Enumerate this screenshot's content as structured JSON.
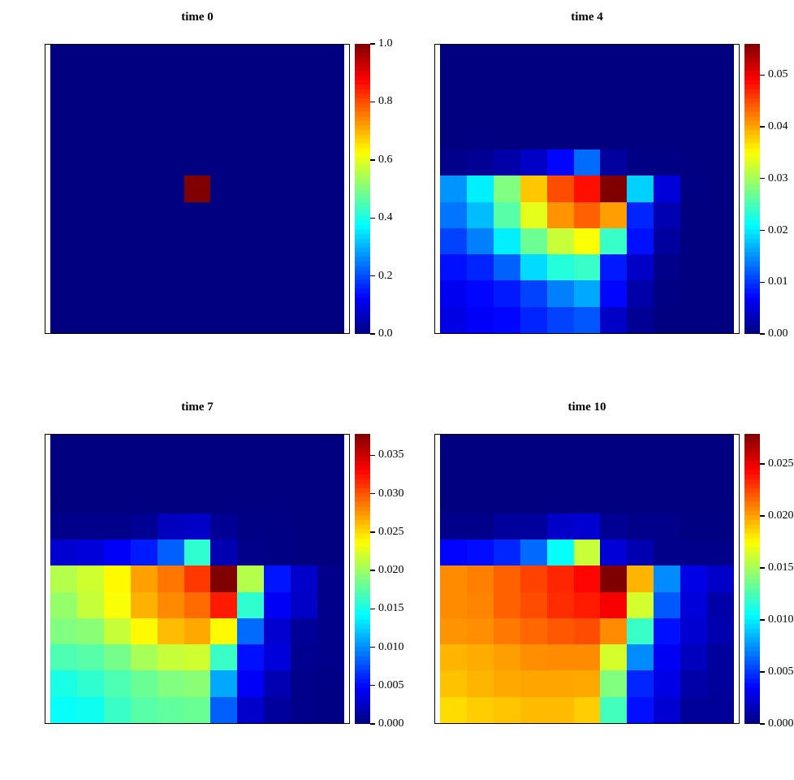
{
  "figure": {
    "background_color": "#ffffff",
    "text_color": "#000000",
    "colormap": "jet",
    "colormap_min_color": "#000080",
    "colormap_max_color": "#800000",
    "layout": "2x2 grid of heatmap panels with individual colorbars"
  },
  "chart_data": [
    {
      "type": "heatmap",
      "title": "time 0",
      "grid_rows": 11,
      "grid_cols": 11,
      "zlim": [
        0,
        1.0
      ],
      "legend_position": "right",
      "colorbar_ticks": [
        {
          "value": 0.0,
          "label": "0.0"
        },
        {
          "value": 0.2,
          "label": "0.2"
        },
        {
          "value": 0.4,
          "label": "0.4"
        },
        {
          "value": 0.6,
          "label": "0.6"
        },
        {
          "value": 0.8,
          "label": "0.8"
        },
        {
          "value": 1.0,
          "label": "1.0"
        }
      ],
      "values": [
        [
          0,
          0,
          0,
          0,
          0,
          0,
          0,
          0,
          0,
          0,
          0
        ],
        [
          0,
          0,
          0,
          0,
          0,
          0,
          0,
          0,
          0,
          0,
          0
        ],
        [
          0,
          0,
          0,
          0,
          0,
          0,
          0,
          0,
          0,
          0,
          0
        ],
        [
          0,
          0,
          0,
          0,
          0,
          0,
          0,
          0,
          0,
          0,
          0
        ],
        [
          0,
          0,
          0,
          0,
          0,
          0,
          0,
          0,
          0,
          0,
          0
        ],
        [
          0,
          0,
          0,
          0,
          0,
          1,
          0,
          0,
          0,
          0,
          0
        ],
        [
          0,
          0,
          0,
          0,
          0,
          0,
          0,
          0,
          0,
          0,
          0
        ],
        [
          0,
          0,
          0,
          0,
          0,
          0,
          0,
          0,
          0,
          0,
          0
        ],
        [
          0,
          0,
          0,
          0,
          0,
          0,
          0,
          0,
          0,
          0,
          0
        ],
        [
          0,
          0,
          0,
          0,
          0,
          0,
          0,
          0,
          0,
          0,
          0
        ],
        [
          0,
          0,
          0,
          0,
          0,
          0,
          0,
          0,
          0,
          0,
          0
        ]
      ]
    },
    {
      "type": "heatmap",
      "title": "time 4",
      "grid_rows": 11,
      "grid_cols": 11,
      "zlim": [
        0,
        0.056
      ],
      "legend_position": "right",
      "colorbar_ticks": [
        {
          "value": 0.0,
          "label": "0.00"
        },
        {
          "value": 0.01,
          "label": "0.01"
        },
        {
          "value": 0.02,
          "label": "0.02"
        },
        {
          "value": 0.03,
          "label": "0.03"
        },
        {
          "value": 0.04,
          "label": "0.04"
        },
        {
          "value": 0.05,
          "label": "0.05"
        }
      ],
      "values": [
        [
          0,
          0,
          0,
          0,
          0,
          0,
          0,
          0,
          0,
          0,
          0
        ],
        [
          0,
          0,
          0,
          0,
          0,
          0,
          0,
          0,
          0,
          0,
          0
        ],
        [
          0,
          0,
          0,
          0,
          0,
          0,
          0,
          0,
          0,
          0,
          0
        ],
        [
          0,
          0,
          0,
          0,
          0,
          0,
          0,
          0,
          0,
          0,
          0
        ],
        [
          0.0006,
          0.0011,
          0.0022,
          0.0039,
          0.0073,
          0.0129,
          0.0017,
          0.0003,
          0.0003,
          0,
          0
        ],
        [
          0.0151,
          0.0202,
          0.028,
          0.0381,
          0.0448,
          0.0482,
          0.056,
          0.0185,
          0.005,
          0.0003,
          0
        ],
        [
          0.0134,
          0.0174,
          0.0258,
          0.0336,
          0.0409,
          0.0437,
          0.0403,
          0.009,
          0.0028,
          0,
          0
        ],
        [
          0.0106,
          0.014,
          0.0202,
          0.0269,
          0.0319,
          0.0347,
          0.0241,
          0.0078,
          0.0017,
          0,
          0
        ],
        [
          0.0078,
          0.009,
          0.0123,
          0.019,
          0.023,
          0.0241,
          0.0084,
          0.0039,
          0.0006,
          0,
          0
        ],
        [
          0.0062,
          0.0073,
          0.0084,
          0.0106,
          0.014,
          0.0162,
          0.0073,
          0.0022,
          0.0003,
          0,
          0
        ],
        [
          0.0056,
          0.0067,
          0.0073,
          0.009,
          0.0106,
          0.0118,
          0.0039,
          0.0011,
          0,
          0,
          0
        ]
      ]
    },
    {
      "type": "heatmap",
      "title": "time 7",
      "grid_rows": 11,
      "grid_cols": 11,
      "zlim": [
        0,
        0.0378
      ],
      "legend_position": "right",
      "colorbar_ticks": [
        {
          "value": 0.0,
          "label": "0.000"
        },
        {
          "value": 0.005,
          "label": "0.005"
        },
        {
          "value": 0.01,
          "label": "0.010"
        },
        {
          "value": 0.015,
          "label": "0.015"
        },
        {
          "value": 0.02,
          "label": "0.020"
        },
        {
          "value": 0.025,
          "label": "0.025"
        },
        {
          "value": 0.03,
          "label": "0.030"
        },
        {
          "value": 0.035,
          "label": "0.035"
        }
      ],
      "values": [
        [
          0,
          0,
          0,
          0,
          0,
          0,
          0,
          0,
          0,
          0,
          0
        ],
        [
          0,
          0,
          0,
          0,
          0,
          0,
          0,
          0,
          0,
          0,
          0
        ],
        [
          0,
          0,
          0,
          0,
          0,
          0,
          0,
          0,
          0,
          0,
          0
        ],
        [
          0.0004,
          0.0004,
          0.0004,
          0.0008,
          0.0023,
          0.0026,
          0.0008,
          0.0002,
          0.0002,
          0,
          0
        ],
        [
          0.003,
          0.0034,
          0.0045,
          0.0057,
          0.0083,
          0.0159,
          0.0019,
          0.0004,
          0.0002,
          0,
          0
        ],
        [
          0.0208,
          0.0219,
          0.0238,
          0.0272,
          0.0287,
          0.031,
          0.0378,
          0.0208,
          0.0055,
          0.0028,
          0.0004
        ],
        [
          0.0197,
          0.0215,
          0.0234,
          0.0265,
          0.028,
          0.0291,
          0.0321,
          0.0159,
          0.0043,
          0.0026,
          0.0004
        ],
        [
          0.0189,
          0.0193,
          0.0215,
          0.0238,
          0.0261,
          0.0268,
          0.0238,
          0.0087,
          0.003,
          0.0009,
          0.0004
        ],
        [
          0.017,
          0.0174,
          0.0185,
          0.0204,
          0.0215,
          0.0219,
          0.0163,
          0.0053,
          0.0034,
          0.0006,
          0.0004
        ],
        [
          0.0151,
          0.0159,
          0.017,
          0.0181,
          0.0189,
          0.0193,
          0.011,
          0.0045,
          0.0019,
          0.0004,
          0.0002
        ],
        [
          0.0144,
          0.0147,
          0.0163,
          0.0174,
          0.0178,
          0.0181,
          0.0083,
          0.0028,
          0.0011,
          0.0004,
          0.0002
        ]
      ]
    },
    {
      "type": "heatmap",
      "title": "time 10",
      "grid_rows": 11,
      "grid_cols": 11,
      "zlim": [
        0,
        0.0279
      ],
      "legend_position": "right",
      "colorbar_ticks": [
        {
          "value": 0.0,
          "label": "0.000"
        },
        {
          "value": 0.005,
          "label": "0.005"
        },
        {
          "value": 0.01,
          "label": "0.010"
        },
        {
          "value": 0.015,
          "label": "0.015"
        },
        {
          "value": 0.02,
          "label": "0.020"
        },
        {
          "value": 0.025,
          "label": "0.025"
        }
      ],
      "values": [
        [
          0,
          0,
          0,
          0,
          0,
          0,
          0,
          0,
          0,
          0,
          0
        ],
        [
          0,
          0,
          0,
          0,
          0,
          0,
          0,
          0,
          0,
          0,
          0
        ],
        [
          0,
          0,
          0,
          0,
          0,
          0,
          0,
          0,
          0,
          0,
          0
        ],
        [
          0.0003,
          0.0003,
          0.0008,
          0.0008,
          0.002,
          0.0022,
          0.0006,
          0.0003,
          0.0003,
          0.0001,
          0.0001
        ],
        [
          0.0036,
          0.0038,
          0.0045,
          0.0064,
          0.0106,
          0.0159,
          0.0024,
          0.0014,
          0.0003,
          0.0003,
          0.0003
        ],
        [
          0.0206,
          0.0209,
          0.0218,
          0.0226,
          0.0234,
          0.0243,
          0.0279,
          0.0195,
          0.0073,
          0.0028,
          0.002
        ],
        [
          0.0206,
          0.0208,
          0.0218,
          0.0223,
          0.0232,
          0.0237,
          0.0246,
          0.0162,
          0.0059,
          0.0025,
          0.0011
        ],
        [
          0.0204,
          0.0205,
          0.0211,
          0.0216,
          0.022,
          0.0223,
          0.0206,
          0.012,
          0.0039,
          0.0022,
          0.0013
        ],
        [
          0.0195,
          0.0197,
          0.0201,
          0.0205,
          0.0206,
          0.0206,
          0.0163,
          0.0073,
          0.0032,
          0.0017,
          0.0008
        ],
        [
          0.0191,
          0.0195,
          0.0198,
          0.0199,
          0.0199,
          0.0198,
          0.014,
          0.0045,
          0.0028,
          0.0011,
          0.0008
        ],
        [
          0.0184,
          0.0188,
          0.019,
          0.0193,
          0.0193,
          0.0188,
          0.0123,
          0.0039,
          0.0022,
          0.0007,
          0.0007
        ]
      ]
    }
  ]
}
